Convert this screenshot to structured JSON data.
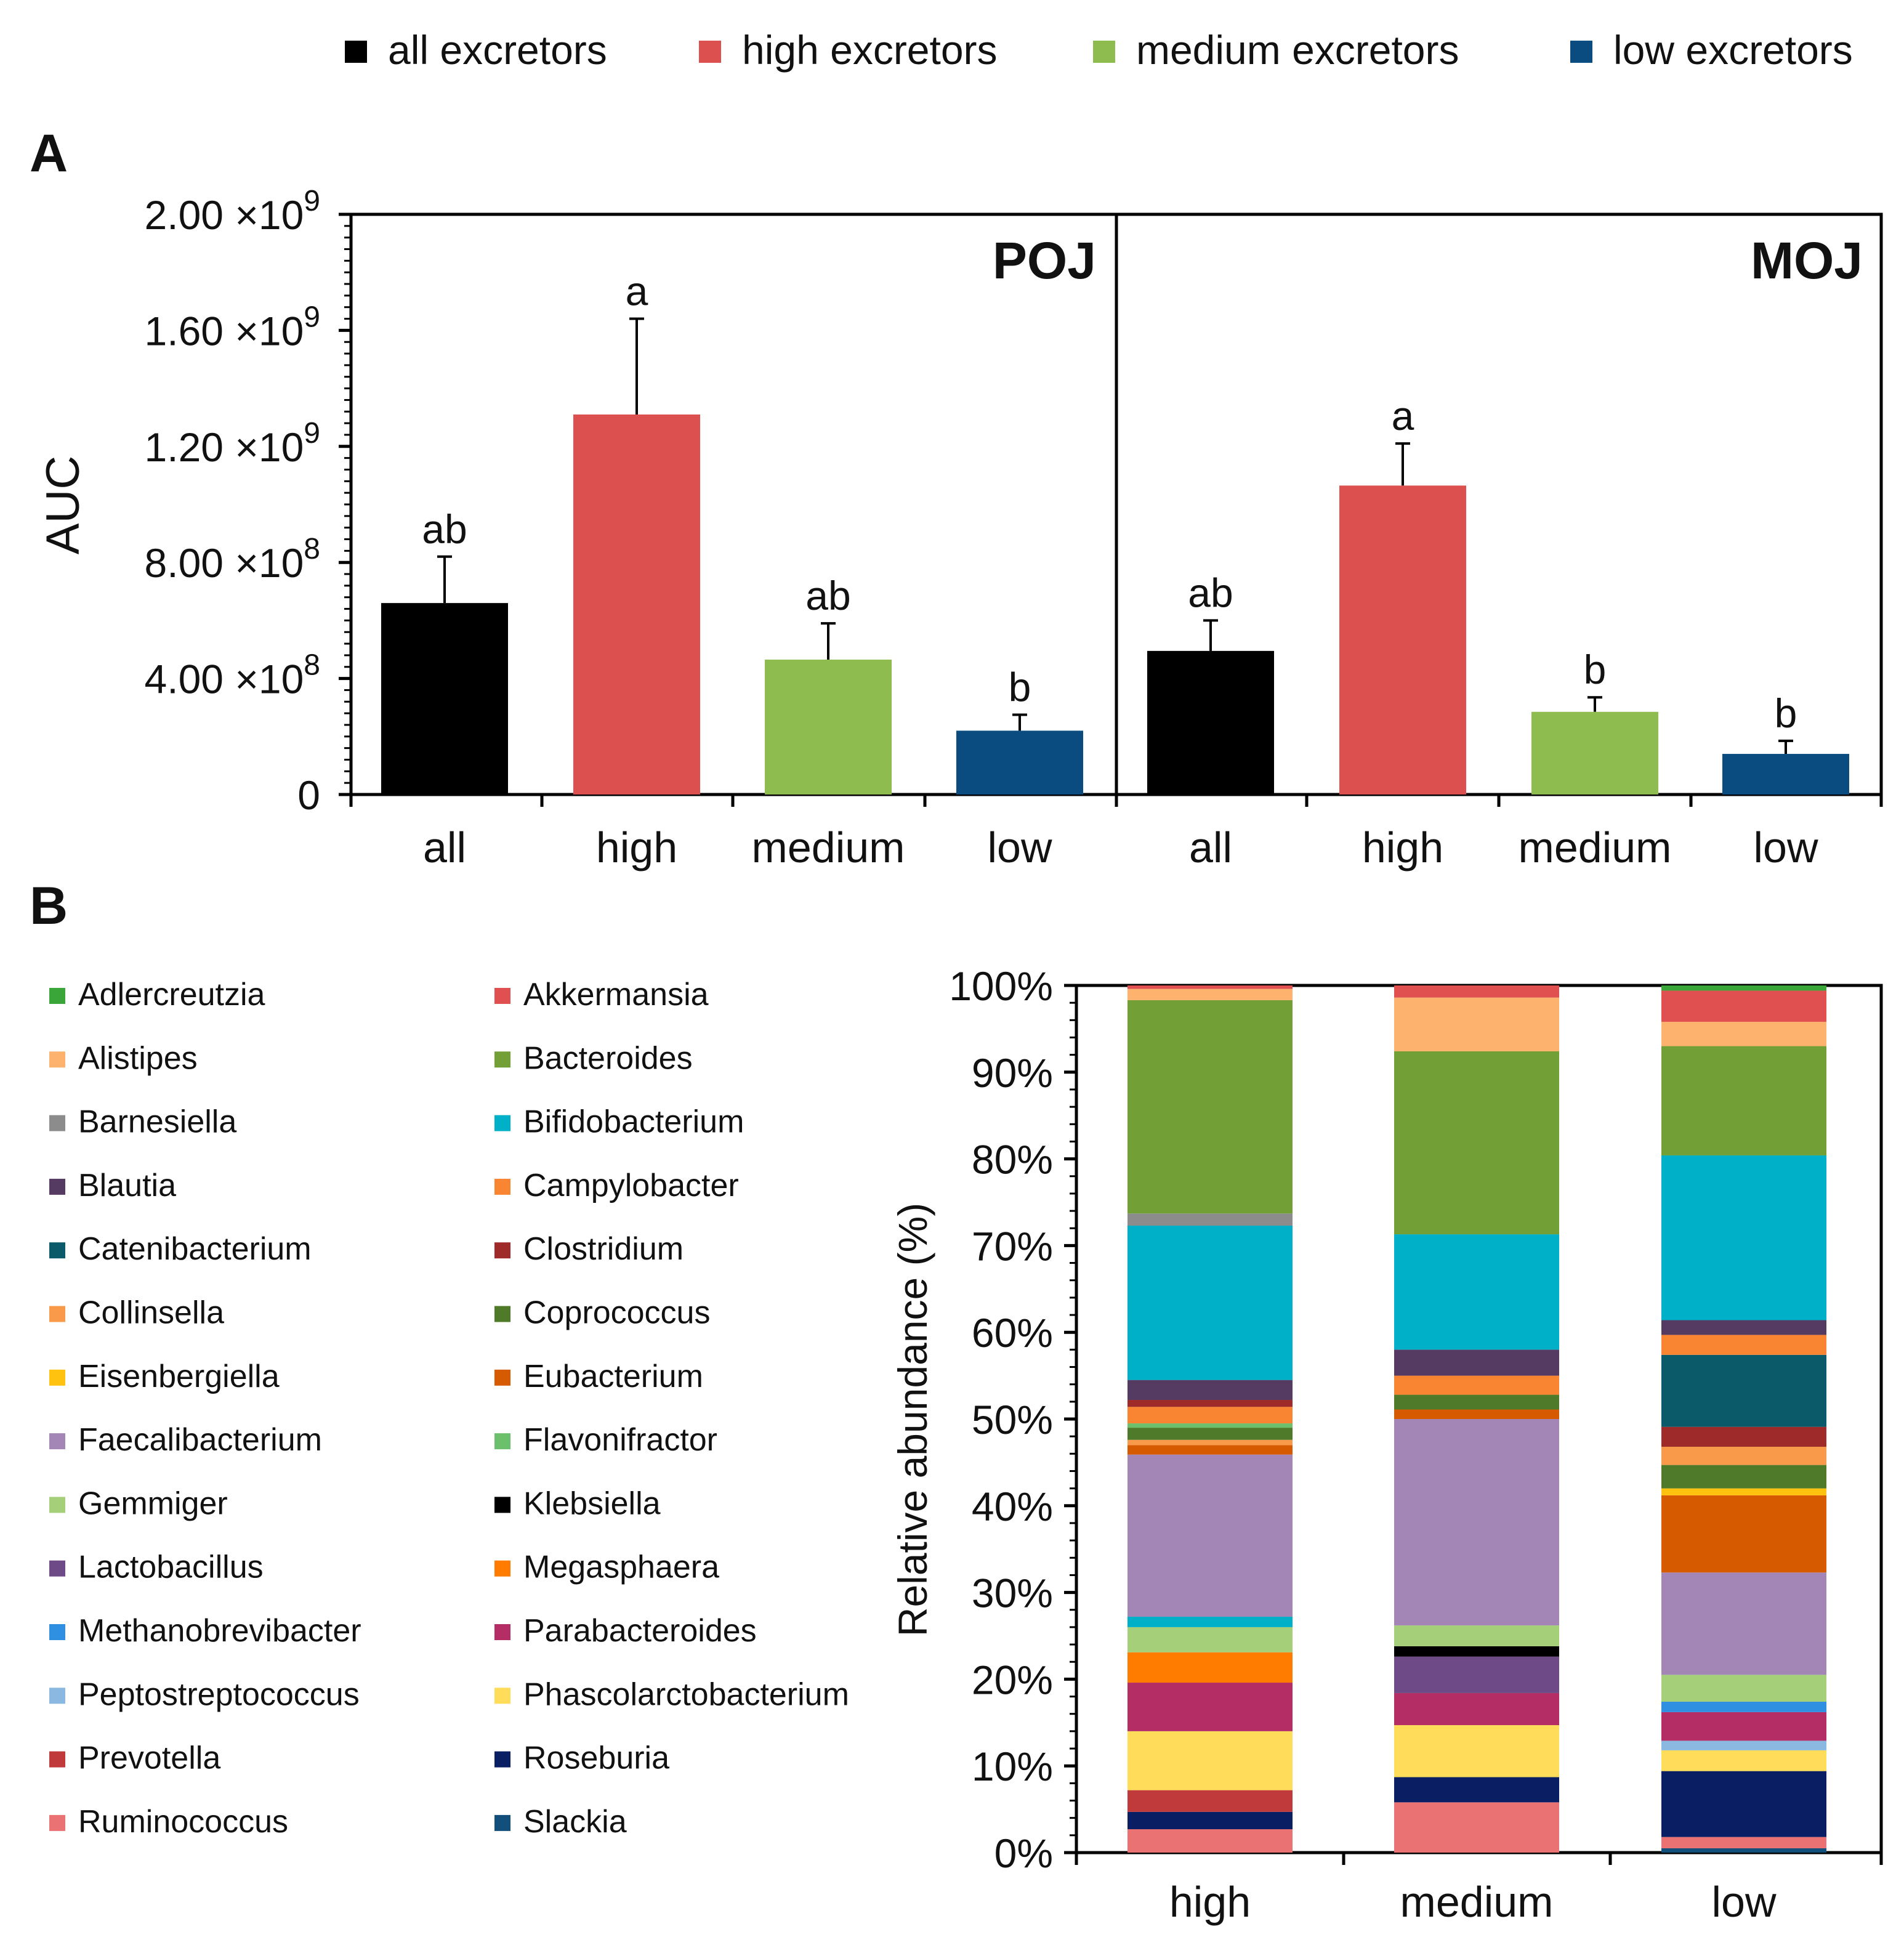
{
  "legend_top": [
    {
      "label": "all excretors",
      "color": "#000000"
    },
    {
      "label": "high excretors",
      "color": "#dc5050"
    },
    {
      "label": "medium excretors",
      "color": "#8fbc4f"
    },
    {
      "label": "low excretors",
      "color": "#0a4b80"
    }
  ],
  "panel_a_label": "A",
  "panel_b_label": "B",
  "colors": {
    "all": "#000000",
    "high": "#dc5050",
    "medium": "#8fbc4f",
    "low": "#0a4b80"
  },
  "chart_data": [
    {
      "type": "bar",
      "panel": "A",
      "ylabel": "AUC",
      "ylim": [
        0,
        2000000000
      ],
      "yticks": [
        {
          "mantissa": "0",
          "exp": ""
        },
        {
          "mantissa": "4.00 ×10",
          "exp": "8"
        },
        {
          "mantissa": "8.00 ×10",
          "exp": "8"
        },
        {
          "mantissa": "1.20 ×10",
          "exp": "9"
        },
        {
          "mantissa": "1.60 ×10",
          "exp": "9"
        },
        {
          "mantissa": "2.00 ×10",
          "exp": "9"
        }
      ],
      "ytick_values": [
        0,
        400000000,
        800000000,
        1200000000,
        1600000000,
        2000000000
      ],
      "categories": [
        "all",
        "high",
        "medium",
        "low"
      ],
      "groups": [
        {
          "title": "POJ",
          "values": [
            660000000,
            1310000000,
            465000000,
            220000000
          ],
          "errors": [
            160000000,
            330000000,
            125000000,
            55000000
          ],
          "letters": [
            "ab",
            "a",
            "ab",
            "b"
          ]
        },
        {
          "title": "MOJ",
          "values": [
            495000000,
            1065000000,
            285000000,
            140000000
          ],
          "errors": [
            105000000,
            145000000,
            50000000,
            45000000
          ],
          "letters": [
            "ab",
            "a",
            "b",
            "b"
          ]
        }
      ]
    },
    {
      "type": "bar",
      "stacked": true,
      "panel": "B",
      "ylabel": "Relative abundance (%)",
      "ylim": [
        0,
        100
      ],
      "yticks": [
        "0%",
        "10%",
        "20%",
        "30%",
        "40%",
        "50%",
        "60%",
        "70%",
        "80%",
        "90%",
        "100%"
      ],
      "categories": [
        "high",
        "medium",
        "low"
      ],
      "legend_left": [
        {
          "label": "Adlercreutzia",
          "color": "#3aa63a"
        },
        {
          "label": "Alistipes",
          "color": "#fdb26e"
        },
        {
          "label": "Barnesiella",
          "color": "#8c8c8c"
        },
        {
          "label": "Blautia",
          "color": "#553a62"
        },
        {
          "label": "Catenibacterium",
          "color": "#0a5a6a"
        },
        {
          "label": "Collinsella",
          "color": "#f89a4a"
        },
        {
          "label": "Eisenbergiella",
          "color": "#ffc20e"
        },
        {
          "label": "Faecalibacterium",
          "color": "#a385b6"
        },
        {
          "label": "Gemmiger",
          "color": "#a6cf7a"
        },
        {
          "label": "Lactobacillus",
          "color": "#6e4a86"
        },
        {
          "label": "Methanobrevibacter",
          "color": "#2f8fe0"
        },
        {
          "label": "Peptostreptococcus",
          "color": "#8ab8e0"
        },
        {
          "label": "Prevotella",
          "color": "#c0393b"
        },
        {
          "label": "Ruminococcus",
          "color": "#ea7272"
        }
      ],
      "legend_right": [
        {
          "label": "Akkermansia",
          "color": "#e05050"
        },
        {
          "label": "Bacteroides",
          "color": "#72a037"
        },
        {
          "label": "Bifidobacterium",
          "color": "#00b0c8"
        },
        {
          "label": "Campylobacter",
          "color": "#f98431"
        },
        {
          "label": "Clostridium",
          "color": "#9e2a2a"
        },
        {
          "label": "Coprococcus",
          "color": "#4e7a2a"
        },
        {
          "label": "Eubacterium",
          "color": "#d65a00"
        },
        {
          "label": "Flavonifractor",
          "color": "#6cc06c"
        },
        {
          "label": "Klebsiella",
          "color": "#000000"
        },
        {
          "label": "Megasphaera",
          "color": "#ff7c00"
        },
        {
          "label": "Parabacteroides",
          "color": "#b42d64"
        },
        {
          "label": "Phascolarctobacterium",
          "color": "#ffdc5a"
        },
        {
          "label": "Roseburia",
          "color": "#0a1e64"
        },
        {
          "label": "Slackia",
          "color": "#124f7a"
        }
      ],
      "stacks": [
        {
          "category": "high",
          "segments": [
            {
              "genus": "Ruminococcus",
              "value": 2.7
            },
            {
              "genus": "Roseburia",
              "value": 2.0
            },
            {
              "genus": "Prevotella",
              "value": 2.5
            },
            {
              "genus": "Phascolarctobacterium",
              "value": 6.8
            },
            {
              "genus": "Parabacteroides",
              "value": 5.6
            },
            {
              "genus": "Megasphaera",
              "value": 3.5
            },
            {
              "genus": "Gemmiger",
              "value": 2.9
            },
            {
              "genus": "Bifidobacterium",
              "value": 1.2
            },
            {
              "genus": "Faecalibacterium",
              "value": 18.7
            },
            {
              "genus": "Eubacterium",
              "value": 1.1
            },
            {
              "genus": "Collinsella",
              "value": 0.6
            },
            {
              "genus": "Coprococcus",
              "value": 1.4
            },
            {
              "genus": "Flavonifractor",
              "value": 0.5
            },
            {
              "genus": "Campylobacter",
              "value": 1.9
            },
            {
              "genus": "Clostridium",
              "value": 0.8
            },
            {
              "genus": "Blautia",
              "value": 2.3
            },
            {
              "genus": "Bifidobacterium",
              "value": 17.8
            },
            {
              "genus": "Barnesiella",
              "value": 1.4
            },
            {
              "genus": "Bacteroides",
              "value": 24.6
            },
            {
              "genus": "Alistipes",
              "value": 1.3
            },
            {
              "genus": "Akkermansia",
              "value": 0.4
            }
          ]
        },
        {
          "category": "medium",
          "segments": [
            {
              "genus": "Ruminococcus",
              "value": 5.8
            },
            {
              "genus": "Roseburia",
              "value": 2.9
            },
            {
              "genus": "Phascolarctobacterium",
              "value": 6.0
            },
            {
              "genus": "Parabacteroides",
              "value": 3.7
            },
            {
              "genus": "Lactobacillus",
              "value": 4.2
            },
            {
              "genus": "Klebsiella",
              "value": 1.2
            },
            {
              "genus": "Gemmiger",
              "value": 2.4
            },
            {
              "genus": "Faecalibacterium",
              "value": 23.8
            },
            {
              "genus": "Eubacterium",
              "value": 1.1
            },
            {
              "genus": "Coprococcus",
              "value": 1.7
            },
            {
              "genus": "Campylobacter",
              "value": 2.2
            },
            {
              "genus": "Blautia",
              "value": 3.0
            },
            {
              "genus": "Bifidobacterium",
              "value": 13.3
            },
            {
              "genus": "Bacteroides",
              "value": 21.1
            },
            {
              "genus": "Alistipes",
              "value": 6.2
            },
            {
              "genus": "Akkermansia",
              "value": 1.4
            }
          ]
        },
        {
          "category": "low",
          "segments": [
            {
              "genus": "Slackia",
              "value": 0.5
            },
            {
              "genus": "Ruminococcus",
              "value": 1.3
            },
            {
              "genus": "Roseburia",
              "value": 7.6
            },
            {
              "genus": "Phascolarctobacterium",
              "value": 2.4
            },
            {
              "genus": "Peptostreptococcus",
              "value": 1.1
            },
            {
              "genus": "Parabacteroides",
              "value": 3.3
            },
            {
              "genus": "Methanobrevibacter",
              "value": 1.2
            },
            {
              "genus": "Gemmiger",
              "value": 3.1
            },
            {
              "genus": "Faecalibacterium",
              "value": 11.8
            },
            {
              "genus": "Eubacterium",
              "value": 8.9
            },
            {
              "genus": "Eisenbergiella",
              "value": 0.8
            },
            {
              "genus": "Coprococcus",
              "value": 2.7
            },
            {
              "genus": "Collinsella",
              "value": 2.1
            },
            {
              "genus": "Clostridium",
              "value": 2.3
            },
            {
              "genus": "Catenibacterium",
              "value": 8.3
            },
            {
              "genus": "Campylobacter",
              "value": 2.3
            },
            {
              "genus": "Blautia",
              "value": 1.7
            },
            {
              "genus": "Bifidobacterium",
              "value": 19.0
            },
            {
              "genus": "Bacteroides",
              "value": 12.6
            },
            {
              "genus": "Alistipes",
              "value": 2.8
            },
            {
              "genus": "Akkermansia",
              "value": 3.6
            },
            {
              "genus": "Adlercreutzia",
              "value": 0.6
            }
          ]
        }
      ]
    }
  ]
}
